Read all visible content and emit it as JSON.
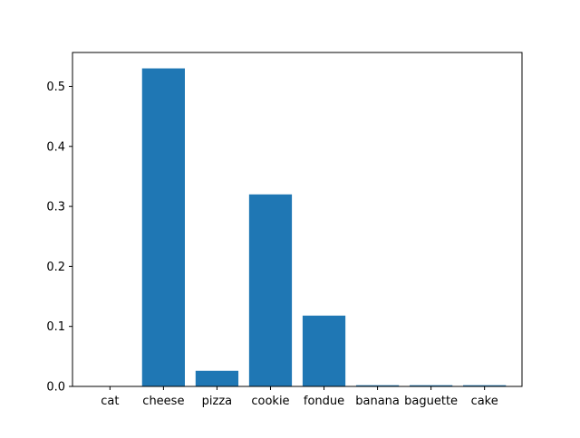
{
  "chart_data": {
    "type": "bar",
    "title": "",
    "xlabel": "",
    "ylabel": "",
    "categories": [
      "cat",
      "cheese",
      "pizza",
      "cookie",
      "fondue",
      "banana",
      "baguette",
      "cake"
    ],
    "values": [
      0.0,
      0.53,
      0.026,
      0.32,
      0.118,
      0.002,
      0.002,
      0.002
    ],
    "ylim": [
      0,
      0.5565
    ],
    "yticks": [
      "0.0",
      "0.1",
      "0.2",
      "0.3",
      "0.4",
      "0.5"
    ],
    "grid": false,
    "legend": "none",
    "bar_color": "#1f77b4"
  }
}
